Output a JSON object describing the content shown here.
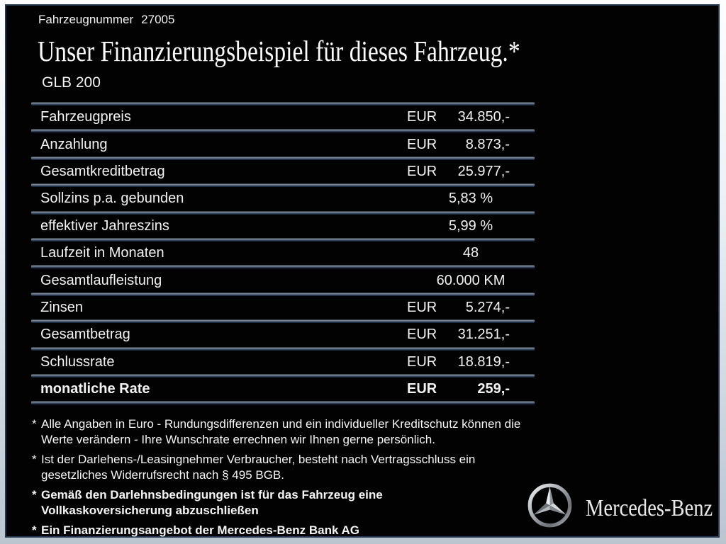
{
  "page": {
    "vehicle_number_label": "Fahrzeugnummer",
    "vehicle_number": "27005",
    "title": "Unser Finanzierungsbeispiel für dieses Fahrzeug.*",
    "model": "GLB 200"
  },
  "table": {
    "rows": [
      {
        "label": "Fahrzeugpreis",
        "currency": "EUR",
        "value": "34.850,-",
        "bold": false
      },
      {
        "label": "Anzahlung",
        "currency": "EUR",
        "value": "8.873,-",
        "bold": false
      },
      {
        "label": "Gesamtkreditbetrag",
        "currency": "EUR",
        "value": "25.977,-",
        "bold": false
      },
      {
        "label": "Sollzins p.a. gebunden",
        "currency": "",
        "value": "5,83 %",
        "bold": false
      },
      {
        "label": "effektiver Jahreszins",
        "currency": "",
        "value": "5,99 %",
        "bold": false
      },
      {
        "label": "Laufzeit in Monaten",
        "currency": "",
        "value": "48",
        "bold": false
      },
      {
        "label": "Gesamtlaufleistung",
        "currency": "",
        "value": "60.000 KM",
        "bold": false
      },
      {
        "label": "Zinsen",
        "currency": "EUR",
        "value": "5.274,-",
        "bold": false
      },
      {
        "label": "Gesamtbetrag",
        "currency": "EUR",
        "value": "31.251,-",
        "bold": false
      },
      {
        "label": "Schlussrate",
        "currency": "EUR",
        "value": "18.819,-",
        "bold": false
      },
      {
        "label": "monatliche Rate",
        "currency": "EUR",
        "value": "259,-",
        "bold": true
      }
    ]
  },
  "footnotes": [
    {
      "marker": "*",
      "bold": false,
      "text": "Alle Angaben in Euro - Rundungsdifferenzen und ein individueller Kreditschutz können die\nWerte verändern - Ihre Wunschrate errechnen wir Ihnen gerne persönlich."
    },
    {
      "marker": "*",
      "bold": false,
      "text": "Ist der Darlehens-/Leasingnehmer Verbraucher, besteht nach Vertragsschluss ein\ngesetzliches Widerrufsrecht nach § 495 BGB."
    },
    {
      "marker": "*",
      "bold": true,
      "text": "Gemäß den Darlehnsbedingungen ist für das Fahrzeug eine\nVollkaskoversicherung abzuschließen"
    },
    {
      "marker": "*",
      "bold": true,
      "text": "Ein Finanzierungsangebot der Mercedes-Benz Bank AG"
    }
  ],
  "brand": {
    "name": "Mercedes-Benz",
    "logo_icon": "mercedes-star-icon"
  },
  "colors": {
    "background": "#020202",
    "text": "#f2f2f2",
    "frame_light_top": "#fbfdfe",
    "frame_light_bottom": "#bac5d0",
    "inner_border": "#24384f",
    "divider_highlight": "#8a95a1",
    "divider_dark": "#0c1830",
    "logo_silver": "#d7dadd"
  }
}
